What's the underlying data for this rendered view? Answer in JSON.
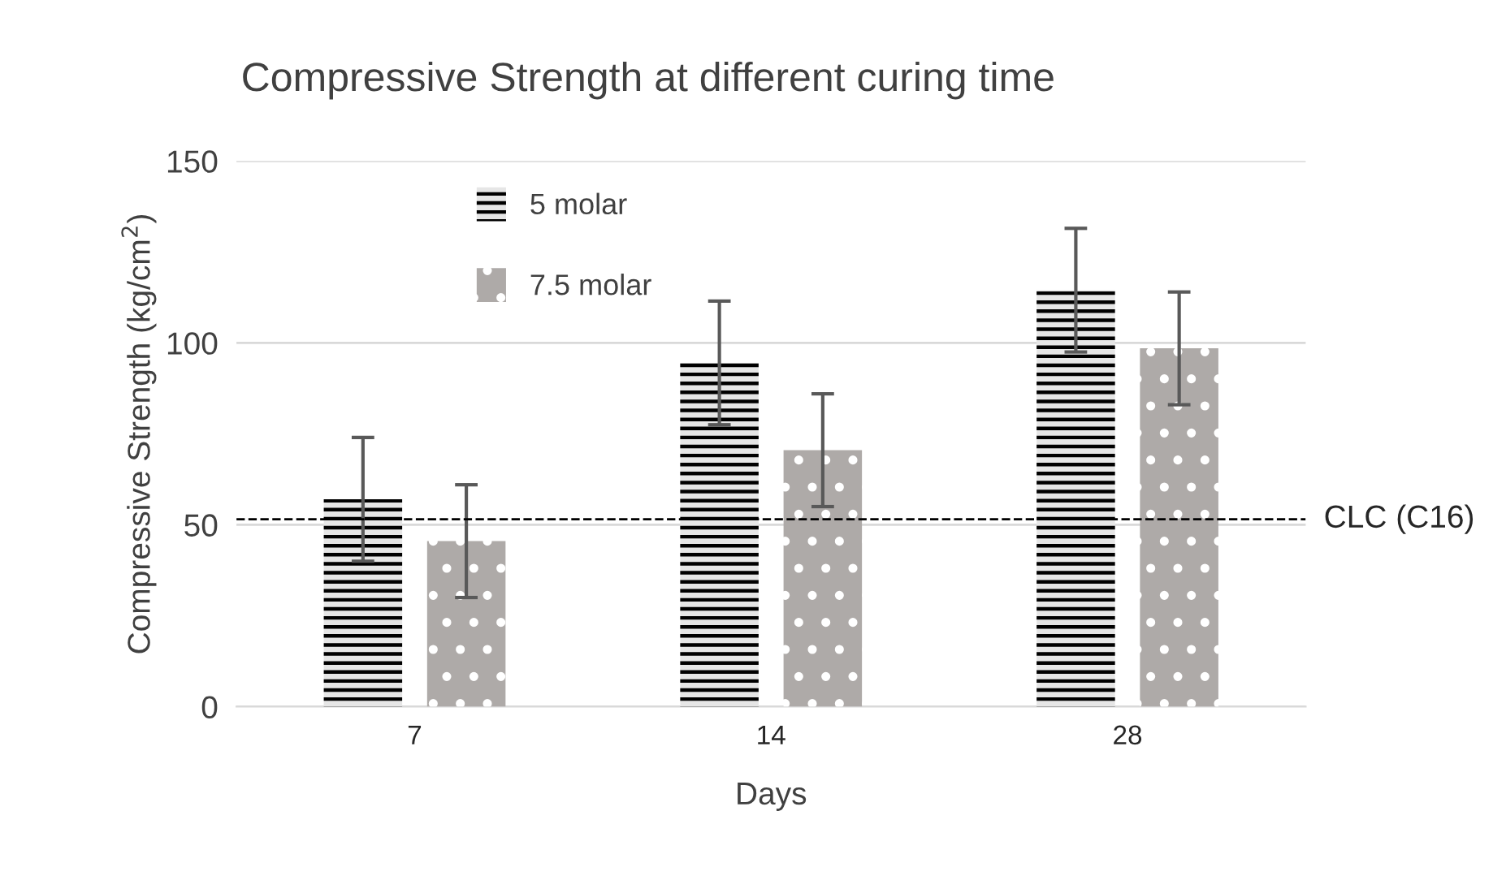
{
  "chart_data": {
    "type": "bar",
    "title": "Compressive Strength at different curing time",
    "xlabel": "Days",
    "ylabel": "Compressive Strength (kg/cm$^{2}$)",
    "categories": [
      "7",
      "14",
      "28"
    ],
    "series": [
      {
        "name": "5 molar",
        "color": "#e6e6e6",
        "values": [
          57,
          94.5,
          114.5
        ],
        "errors": [
          17,
          17,
          17
        ]
      },
      {
        "name": "7.5 molar",
        "color": "#aeaaa8",
        "values": [
          45.5,
          70.5,
          98.5
        ],
        "errors": [
          15.5,
          15.5,
          15.5
        ]
      }
    ],
    "ylim": [
      0,
      150
    ],
    "yticks": [
      0,
      50,
      100,
      150
    ],
    "grid": "y",
    "legend": "top left",
    "ref_lines": [
      {
        "axis": "y",
        "value": 51.5,
        "label": "CLC (C16)",
        "color": "#000000",
        "line_style": "dashed"
      }
    ]
  }
}
